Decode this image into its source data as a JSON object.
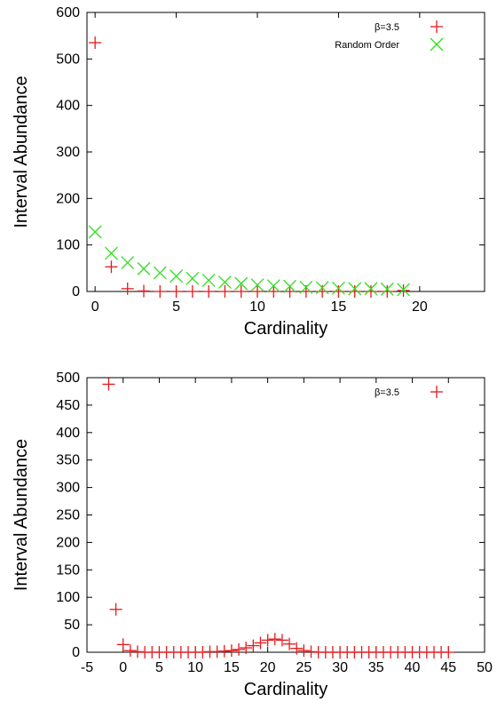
{
  "colors": {
    "series_red": "#e41a1c",
    "series_green": "#33dd22",
    "axis": "#000000"
  },
  "chart_data": [
    {
      "type": "scatter",
      "xlabel": "Cardinality",
      "ylabel": "Interval Abundance",
      "xlim": [
        -0.5,
        24
      ],
      "ylim": [
        0,
        600
      ],
      "xticks": [
        0,
        5,
        10,
        15,
        20
      ],
      "yticks": [
        0,
        100,
        200,
        300,
        400,
        500,
        600
      ],
      "grid": false,
      "legend_position": "top-right",
      "series": [
        {
          "name": "β=3.5",
          "marker": "plus",
          "color": "#e41a1c",
          "x": [
            0,
            1,
            2,
            3,
            4,
            5,
            6,
            7,
            8,
            9,
            10,
            11,
            12,
            13,
            14,
            15,
            16,
            17,
            18,
            19
          ],
          "y": [
            535,
            53,
            6,
            1,
            0,
            0,
            0,
            0,
            0,
            0,
            0,
            0,
            0,
            0,
            0,
            0,
            0,
            0,
            0,
            2
          ]
        },
        {
          "name": "Random Order",
          "marker": "x",
          "color": "#33dd22",
          "x": [
            0,
            1,
            2,
            3,
            4,
            5,
            6,
            7,
            8,
            9,
            10,
            11,
            12,
            13,
            14,
            15,
            16,
            17,
            18,
            19
          ],
          "y": [
            128,
            82,
            62,
            49,
            40,
            33,
            28,
            24,
            20,
            17,
            14,
            12,
            11,
            9,
            8,
            7,
            6,
            6,
            5,
            4
          ]
        }
      ]
    },
    {
      "type": "scatter",
      "xlabel": "Cardinality",
      "ylabel": "Interval Abundance",
      "xlim": [
        -5,
        50
      ],
      "ylim": [
        0,
        500
      ],
      "xticks": [
        -5,
        0,
        5,
        10,
        15,
        20,
        25,
        30,
        35,
        40,
        45,
        50
      ],
      "yticks": [
        0,
        50,
        100,
        150,
        200,
        250,
        300,
        350,
        400,
        450,
        500
      ],
      "grid": false,
      "legend_position": "top-right",
      "series": [
        {
          "name": "β=3.5",
          "marker": "plus",
          "color": "#e41a1c",
          "x": [
            -2,
            -1,
            0,
            1,
            2,
            3,
            4,
            5,
            6,
            7,
            8,
            9,
            10,
            11,
            12,
            13,
            14,
            15,
            16,
            17,
            18,
            19,
            20,
            21,
            22,
            23,
            24,
            25,
            26,
            27,
            28,
            29,
            30,
            31,
            32,
            33,
            34,
            35,
            36,
            37,
            38,
            39,
            40,
            41,
            42,
            43,
            44,
            45
          ],
          "y": [
            488,
            78,
            14,
            3,
            1,
            0,
            0,
            0,
            0,
            0,
            0,
            0,
            0,
            0,
            1,
            1,
            2,
            3,
            5,
            8,
            12,
            17,
            22,
            24,
            22,
            15,
            7,
            3,
            1,
            0,
            0,
            0,
            0,
            0,
            0,
            0,
            0,
            0,
            0,
            0,
            0,
            0,
            0,
            0,
            0,
            0,
            0,
            0
          ]
        }
      ]
    }
  ]
}
